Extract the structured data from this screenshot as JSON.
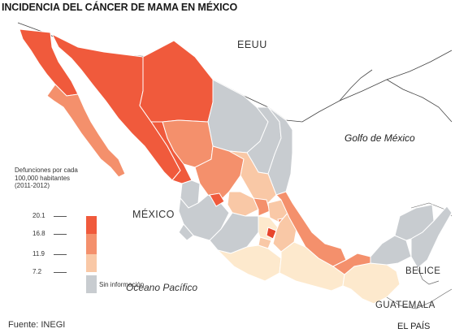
{
  "title": "INCIDENCIA DEL CÁNCER DE MAMA EN MÉXICO",
  "labels": {
    "usa": "EEUU",
    "gulf": "Golfo de México",
    "country": "MÉXICO",
    "pacific": "Oceano Pacífico",
    "belize": "BELICE",
    "guatemala": "GUATEMALA"
  },
  "legend": {
    "title_lines": [
      "Defunciones por cada",
      "100,000 habitantes",
      "(2011-2012)"
    ],
    "ticks": [
      "20.1",
      "16.8",
      "11.9",
      "7.2"
    ],
    "no_data": "Sin información",
    "colors": {
      "very_high": "#f05a3c",
      "high": "#f4906c",
      "medium": "#f9c8a6",
      "low": "#fde9cd",
      "no_data": "#c8ccd0",
      "highlight": "#e8452c"
    }
  },
  "source": "Fuente: INEGI",
  "credit": "EL PAÍS"
}
